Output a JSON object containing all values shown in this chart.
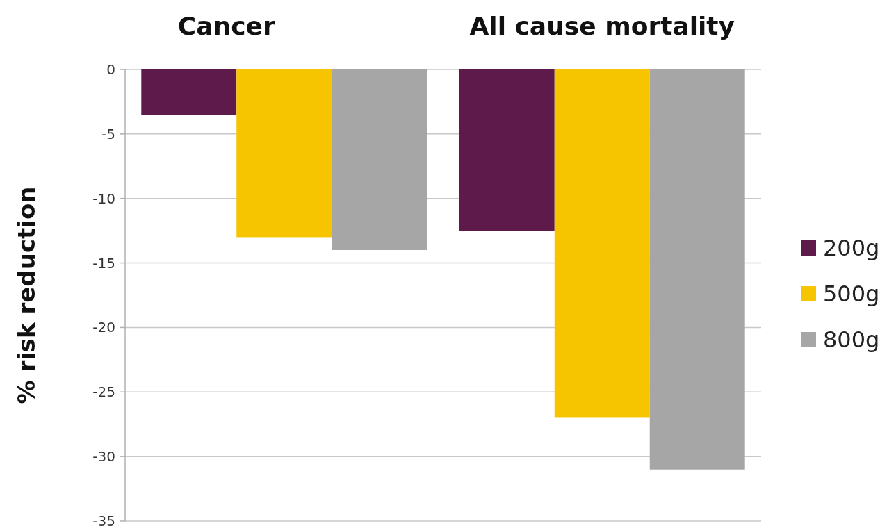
{
  "chart_data": {
    "type": "bar",
    "ylabel": "% risk reduction",
    "categories": [
      "Cancer",
      "All cause mortality"
    ],
    "series": [
      {
        "name": "200g",
        "color": "#5e1a4a",
        "values": [
          -3.5,
          -12.5
        ]
      },
      {
        "name": "500g",
        "color": "#f7c400",
        "values": [
          -13,
          -27
        ]
      },
      {
        "name": "800g",
        "color": "#a6a6a6",
        "values": [
          -14,
          -31
        ]
      }
    ],
    "ylim": [
      -35,
      0
    ],
    "yticks": [
      0,
      -5,
      -10,
      -15,
      -20,
      -25,
      -30,
      -35
    ],
    "grid": "y",
    "legend": "right"
  }
}
